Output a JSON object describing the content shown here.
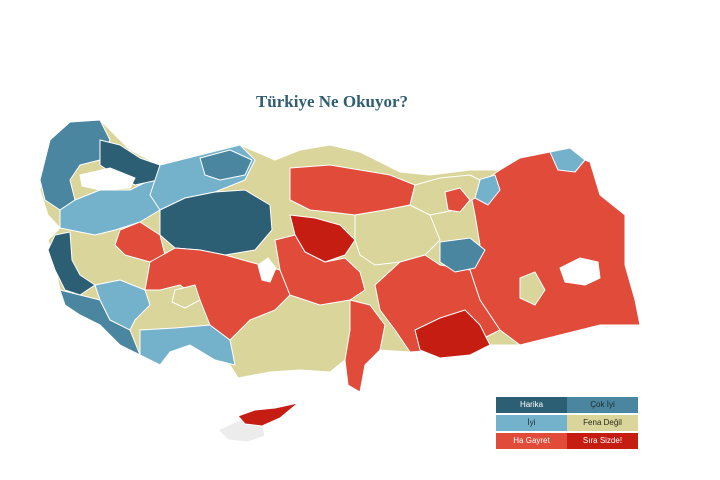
{
  "title": "Türkiye Ne Okuyor?",
  "colors": {
    "harika": "#2c5e74",
    "cok_iyi": "#4a86a0",
    "iyi": "#74b2cc",
    "fena_degil": "#dad59a",
    "ha_gayret": "#e04b3a",
    "sira_sizde": "#c51d12",
    "unknown": "#ececec",
    "lake": "#ffffff"
  },
  "legend": [
    {
      "label": "Harika",
      "color": "#2c5e74",
      "text_color": "#ffffff"
    },
    {
      "label": "Çok İyi",
      "color": "#4a86a0",
      "text_color": "#1e2a30"
    },
    {
      "label": "İyi",
      "color": "#74b2cc",
      "text_color": "#1e2a30"
    },
    {
      "label": "Fena Değil",
      "color": "#dad59a",
      "text_color": "#2a2a1a"
    },
    {
      "label": "Ha Gayret",
      "color": "#e04b3a",
      "text_color": "#ffffff"
    },
    {
      "label": "Sıra Sizde!",
      "color": "#c51d12",
      "text_color": "#ffffff"
    }
  ]
}
